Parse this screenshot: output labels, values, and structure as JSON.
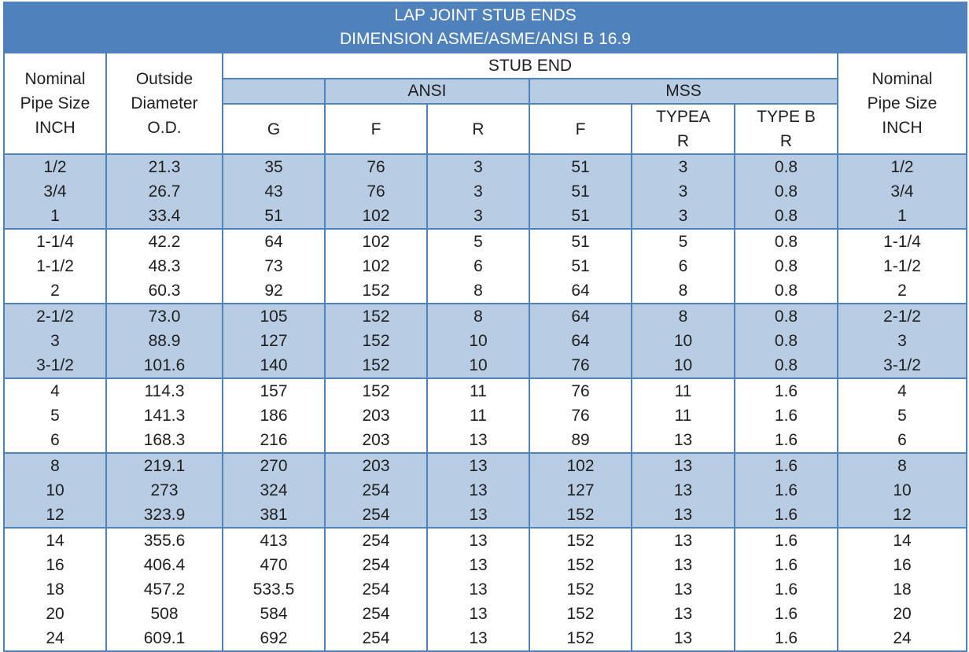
{
  "title": {
    "line1": "LAP JOINT STUB ENDS",
    "line2": "DIMENSION ASME/ASME/ANSI B 16.9"
  },
  "header": {
    "nominal_left": [
      "Nominal",
      "Pipe Size",
      "INCH"
    ],
    "outside_diameter": [
      "Outside",
      "Diameter",
      "O.D."
    ],
    "stub_end": "STUB END",
    "ansi": "ANSI",
    "mss": "MSS",
    "nominal_right": [
      "Nominal",
      "Pipe Size",
      "INCH"
    ],
    "cols": {
      "g": "G",
      "ansi_f": "F",
      "ansi_r": "R",
      "mss_f": "F",
      "type_a": [
        "TYPEA",
        "R"
      ],
      "type_b": [
        "TYPE B",
        "R"
      ]
    }
  },
  "groups": [
    {
      "shaded": true,
      "rows": [
        {
          "nps": "1/2",
          "od": "21.3",
          "g": "35",
          "ansi_f": "76",
          "ansi_r": "3",
          "mss_f": "51",
          "type_a_r": "3",
          "type_b_r": "0.8",
          "nps_right": "1/2"
        },
        {
          "nps": "3/4",
          "od": "26.7",
          "g": "43",
          "ansi_f": "76",
          "ansi_r": "3",
          "mss_f": "51",
          "type_a_r": "3",
          "type_b_r": "0.8",
          "nps_right": "3/4"
        },
        {
          "nps": "1",
          "od": "33.4",
          "g": "51",
          "ansi_f": "102",
          "ansi_r": "3",
          "mss_f": "51",
          "type_a_r": "3",
          "type_b_r": "0.8",
          "nps_right": "1"
        }
      ]
    },
    {
      "shaded": false,
      "rows": [
        {
          "nps": "1-1/4",
          "od": "42.2",
          "g": "64",
          "ansi_f": "102",
          "ansi_r": "5",
          "mss_f": "51",
          "type_a_r": "5",
          "type_b_r": "0.8",
          "nps_right": "1-1/4"
        },
        {
          "nps": "1-1/2",
          "od": "48.3",
          "g": "73",
          "ansi_f": "102",
          "ansi_r": "6",
          "mss_f": "51",
          "type_a_r": "6",
          "type_b_r": "0.8",
          "nps_right": "1-1/2"
        },
        {
          "nps": "2",
          "od": "60.3",
          "g": "92",
          "ansi_f": "152",
          "ansi_r": "8",
          "mss_f": "64",
          "type_a_r": "8",
          "type_b_r": "0.8",
          "nps_right": "2"
        }
      ]
    },
    {
      "shaded": true,
      "rows": [
        {
          "nps": "2-1/2",
          "od": "73.0",
          "g": "105",
          "ansi_f": "152",
          "ansi_r": "8",
          "mss_f": "64",
          "type_a_r": "8",
          "type_b_r": "0.8",
          "nps_right": "2-1/2"
        },
        {
          "nps": "3",
          "od": "88.9",
          "g": "127",
          "ansi_f": "152",
          "ansi_r": "10",
          "mss_f": "64",
          "type_a_r": "10",
          "type_b_r": "0.8",
          "nps_right": "3"
        },
        {
          "nps": "3-1/2",
          "od": "101.6",
          "g": "140",
          "ansi_f": "152",
          "ansi_r": "10",
          "mss_f": "76",
          "type_a_r": "10",
          "type_b_r": "0.8",
          "nps_right": "3-1/2"
        }
      ]
    },
    {
      "shaded": false,
      "rows": [
        {
          "nps": "4",
          "od": "114.3",
          "g": "157",
          "ansi_f": "152",
          "ansi_r": "11",
          "mss_f": "76",
          "type_a_r": "11",
          "type_b_r": "1.6",
          "nps_right": "4"
        },
        {
          "nps": "5",
          "od": "141.3",
          "g": "186",
          "ansi_f": "203",
          "ansi_r": "11",
          "mss_f": "76",
          "type_a_r": "11",
          "type_b_r": "1.6",
          "nps_right": "5"
        },
        {
          "nps": "6",
          "od": "168.3",
          "g": "216",
          "ansi_f": "203",
          "ansi_r": "13",
          "mss_f": "89",
          "type_a_r": "13",
          "type_b_r": "1.6",
          "nps_right": "6"
        }
      ]
    },
    {
      "shaded": true,
      "rows": [
        {
          "nps": "8",
          "od": "219.1",
          "g": "270",
          "ansi_f": "203",
          "ansi_r": "13",
          "mss_f": "102",
          "type_a_r": "13",
          "type_b_r": "1.6",
          "nps_right": "8"
        },
        {
          "nps": "10",
          "od": "273",
          "g": "324",
          "ansi_f": "254",
          "ansi_r": "13",
          "mss_f": "127",
          "type_a_r": "13",
          "type_b_r": "1.6",
          "nps_right": "10"
        },
        {
          "nps": "12",
          "od": "323.9",
          "g": "381",
          "ansi_f": "254",
          "ansi_r": "13",
          "mss_f": "152",
          "type_a_r": "13",
          "type_b_r": "1.6",
          "nps_right": "12"
        }
      ]
    },
    {
      "shaded": false,
      "rows": [
        {
          "nps": "14",
          "od": "355.6",
          "g": "413",
          "ansi_f": "254",
          "ansi_r": "13",
          "mss_f": "152",
          "type_a_r": "13",
          "type_b_r": "1.6",
          "nps_right": "14"
        },
        {
          "nps": "16",
          "od": "406.4",
          "g": "470",
          "ansi_f": "254",
          "ansi_r": "13",
          "mss_f": "152",
          "type_a_r": "13",
          "type_b_r": "1.6",
          "nps_right": "16"
        },
        {
          "nps": "18",
          "od": "457.2",
          "g": "533.5",
          "ansi_f": "254",
          "ansi_r": "13",
          "mss_f": "152",
          "type_a_r": "13",
          "type_b_r": "1.6",
          "nps_right": "18"
        },
        {
          "nps": "20",
          "od": "508",
          "g": "584",
          "ansi_f": "254",
          "ansi_r": "13",
          "mss_f": "152",
          "type_a_r": "13",
          "type_b_r": "1.6",
          "nps_right": "20"
        },
        {
          "nps": "24",
          "od": "609.1",
          "g": "692",
          "ansi_f": "254",
          "ansi_r": "13",
          "mss_f": "152",
          "type_a_r": "13",
          "type_b_r": "1.6",
          "nps_right": "24"
        }
      ]
    }
  ],
  "colors": {
    "title_bg": "#4f81bd",
    "band_bg": "#b8cce4",
    "border": "#4f81bd"
  }
}
